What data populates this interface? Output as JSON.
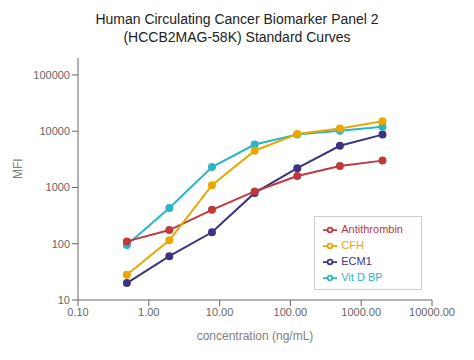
{
  "chart_data": {
    "type": "line",
    "title": "Human Circulating Cancer Biomarker Panel 2",
    "subtitle": "(HCCB2MAG-58K) Standard Curves",
    "x_label": "concentration (ng/mL)",
    "y_label": "MFI",
    "x": [
      0.49,
      1.95,
      7.8,
      31.25,
      125,
      500,
      2000
    ],
    "series": [
      {
        "name": "ECM1",
        "color": "#3d3480",
        "values": [
          20,
          60,
          160,
          800,
          2200,
          5500,
          8700
        ]
      },
      {
        "name": "Vit D BP",
        "color": "#2ab5c8",
        "values": [
          95,
          430,
          2300,
          5800,
          8700,
          10200,
          12000
        ]
      },
      {
        "name": "Antithrombin",
        "color": "#c0393b",
        "values": [
          110,
          175,
          400,
          850,
          1600,
          2400,
          3000
        ]
      },
      {
        "name": "CFH",
        "color": "#e8a800",
        "values": [
          28,
          115,
          1100,
          4500,
          8900,
          11200,
          15000
        ]
      }
    ],
    "xlim": [
      0.1,
      10000.0
    ],
    "ylim": [
      10,
      200000
    ],
    "xticks": [
      {
        "value": 0.1,
        "label": "0.10"
      },
      {
        "value": 1,
        "label": "1.00"
      },
      {
        "value": 10,
        "label": "10.00"
      },
      {
        "value": 100,
        "label": "100.00"
      },
      {
        "value": 1000,
        "label": "1000.00"
      },
      {
        "value": 10000,
        "label": "10000.00"
      }
    ],
    "yticks": [
      10,
      100,
      1000,
      10000,
      100000
    ],
    "log": true,
    "grid": false,
    "legend": "lower right",
    "marker": "circle"
  }
}
